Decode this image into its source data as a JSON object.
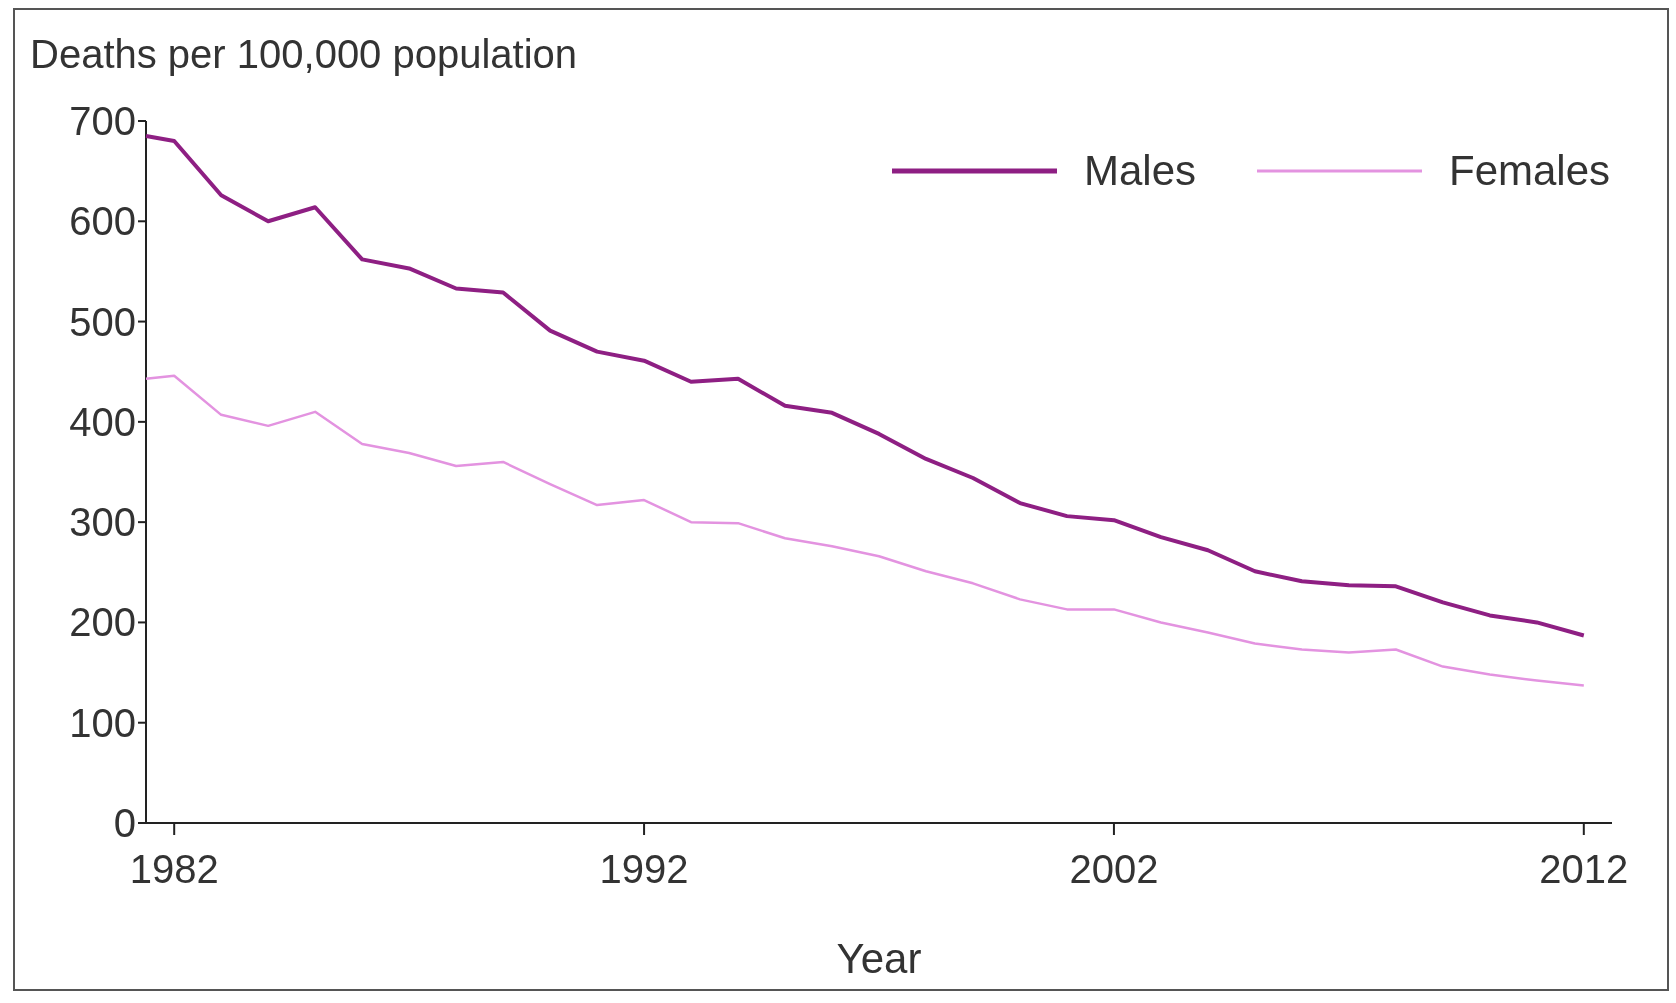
{
  "chart_data": {
    "type": "line",
    "ylabel": "Deaths per 100,000 population",
    "xlabel": "Year",
    "x": [
      1981.4,
      1982,
      1983,
      1984,
      1985,
      1986,
      1987,
      1988,
      1989,
      1990,
      1991,
      1992,
      1993,
      1994,
      1995,
      1996,
      1997,
      1998,
      1999,
      2000,
      2001,
      2002,
      2003,
      2004,
      2005,
      2006,
      2007,
      2008,
      2009,
      2010,
      2011,
      2012
    ],
    "series": [
      {
        "name": "Males",
        "color": "#8e1f83",
        "values": [
          685,
          680,
          626,
          600,
          614,
          562,
          553,
          533,
          529,
          491,
          470,
          461,
          440,
          443,
          416,
          409,
          388,
          363,
          344,
          319,
          306,
          302,
          285,
          272,
          251,
          241,
          237,
          236,
          220,
          207,
          200,
          187
        ]
      },
      {
        "name": "Females",
        "color": "#e393e0",
        "values": [
          443,
          446,
          407,
          396,
          410,
          378,
          369,
          356,
          360,
          338,
          317,
          322,
          300,
          299,
          284,
          276,
          266,
          251,
          239,
          223,
          213,
          213,
          200,
          190,
          179,
          173,
          170,
          173,
          156,
          148,
          142,
          137
        ]
      }
    ],
    "xlim": [
      1981.4,
      2012.6
    ],
    "xticks": [
      1982,
      1992,
      2002,
      2012
    ],
    "ylim": [
      0,
      700
    ],
    "yticks": [
      0,
      100,
      200,
      300,
      400,
      500,
      600,
      700
    ],
    "grid": false,
    "legend": "top right"
  }
}
